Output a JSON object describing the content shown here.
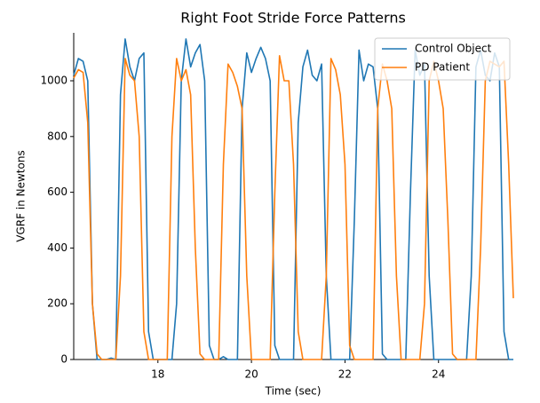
{
  "chart_data": {
    "type": "line",
    "title": "Right Foot Stride Force Patterns",
    "xlabel": "Time (sec)",
    "ylabel": "VGRF in Newtons",
    "x": [
      16.2,
      16.3,
      16.4,
      16.5,
      16.6,
      16.7,
      16.8,
      16.9,
      17.0,
      17.1,
      17.2,
      17.3,
      17.4,
      17.5,
      17.6,
      17.7,
      17.8,
      17.9,
      18.0,
      18.1,
      18.2,
      18.3,
      18.4,
      18.5,
      18.6,
      18.7,
      18.8,
      18.9,
      19.0,
      19.1,
      19.2,
      19.3,
      19.4,
      19.5,
      19.6,
      19.7,
      19.8,
      19.9,
      20.0,
      20.1,
      20.2,
      20.3,
      20.4,
      20.5,
      20.6,
      20.7,
      20.8,
      20.9,
      21.0,
      21.1,
      21.2,
      21.3,
      21.4,
      21.5,
      21.6,
      21.7,
      21.8,
      21.9,
      22.0,
      22.1,
      22.2,
      22.3,
      22.4,
      22.5,
      22.6,
      22.7,
      22.8,
      22.9,
      23.0,
      23.1,
      23.2,
      23.3,
      23.4,
      23.5,
      23.6,
      23.7,
      23.8,
      23.9,
      24.0,
      24.1,
      24.2,
      24.3,
      24.4,
      24.5,
      24.6,
      24.7,
      24.8,
      24.9,
      25.0,
      25.1,
      25.2,
      25.3,
      25.4,
      25.5,
      25.6
    ],
    "series": [
      {
        "name": "Control Object",
        "color": "#1f77b4",
        "values": [
          1020,
          1080,
          1070,
          1000,
          200,
          0,
          0,
          0,
          5,
          0,
          950,
          1150,
          1050,
          1000,
          1080,
          1100,
          100,
          0,
          0,
          0,
          0,
          0,
          200,
          1000,
          1150,
          1050,
          1100,
          1130,
          1000,
          50,
          0,
          0,
          10,
          0,
          0,
          0,
          900,
          1100,
          1030,
          1080,
          1120,
          1080,
          1000,
          50,
          0,
          0,
          0,
          0,
          850,
          1050,
          1110,
          1020,
          1000,
          1060,
          300,
          0,
          0,
          0,
          0,
          0,
          500,
          1110,
          1000,
          1060,
          1050,
          900,
          20,
          0,
          0,
          0,
          0,
          0,
          600,
          1110,
          1020,
          1060,
          300,
          0,
          0,
          0,
          0,
          0,
          0,
          0,
          0,
          300,
          1050,
          1110,
          1020,
          1000,
          1100,
          1050,
          100,
          0,
          0
        ]
      },
      {
        "name": "PD Patient",
        "color": "#ff7f0e",
        "values": [
          1010,
          1040,
          1030,
          850,
          200,
          20,
          0,
          0,
          0,
          0,
          300,
          1080,
          1020,
          1000,
          800,
          100,
          0,
          0,
          0,
          0,
          0,
          800,
          1080,
          1000,
          1040,
          950,
          400,
          20,
          0,
          0,
          0,
          0,
          700,
          1060,
          1030,
          980,
          900,
          300,
          0,
          0,
          0,
          0,
          0,
          600,
          1090,
          1000,
          1000,
          700,
          100,
          0,
          0,
          0,
          0,
          0,
          300,
          1080,
          1040,
          950,
          700,
          50,
          0,
          0,
          0,
          0,
          0,
          900,
          1060,
          1000,
          900,
          300,
          0,
          0,
          0,
          0,
          0,
          200,
          1000,
          1070,
          1000,
          900,
          500,
          20,
          0,
          0,
          0,
          0,
          0,
          400,
          1000,
          1070,
          1060,
          1050,
          1070,
          700,
          220
        ]
      }
    ],
    "xlim": [
      16.2,
      25.6
    ],
    "ylim": [
      0,
      1172
    ],
    "xticks": [
      18,
      20,
      22,
      24
    ],
    "yticks": [
      0,
      200,
      400,
      600,
      800,
      1000
    ],
    "grid": false,
    "legend": "upper right"
  }
}
